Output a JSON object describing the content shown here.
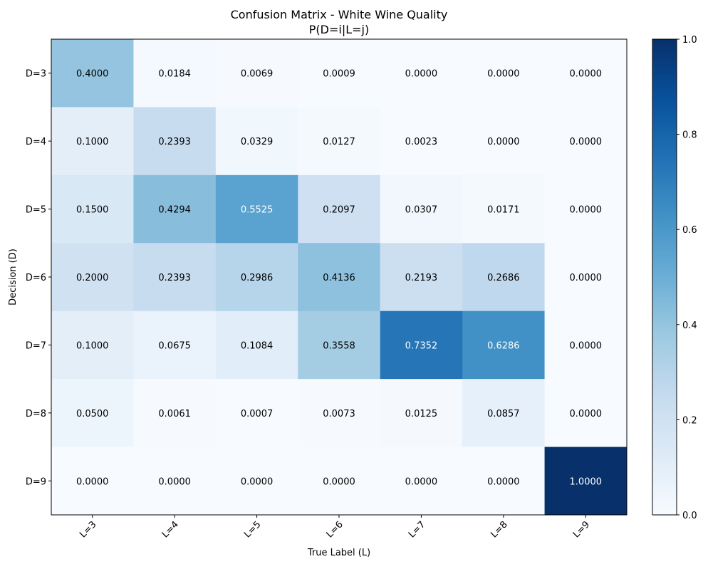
{
  "chart_data": {
    "type": "heatmap",
    "title": "Confusion Matrix - White Wine Quality",
    "subtitle": "P(D=i|L=j)",
    "xlabel": "True Label (L)",
    "ylabel": "Decision (D)",
    "x_categories": [
      "L=3",
      "L=4",
      "L=5",
      "L=6",
      "L=7",
      "L=8",
      "L=9"
    ],
    "y_categories": [
      "D=3",
      "D=4",
      "D=5",
      "D=6",
      "D=7",
      "D=8",
      "D=9"
    ],
    "values": [
      [
        0.4,
        0.0184,
        0.0069,
        0.0009,
        0.0,
        0.0,
        0.0
      ],
      [
        0.1,
        0.2393,
        0.0329,
        0.0127,
        0.0023,
        0.0,
        0.0
      ],
      [
        0.15,
        0.4294,
        0.5525,
        0.2097,
        0.0307,
        0.0171,
        0.0
      ],
      [
        0.2,
        0.2393,
        0.2986,
        0.4136,
        0.2193,
        0.2686,
        0.0
      ],
      [
        0.1,
        0.0675,
        0.1084,
        0.3558,
        0.7352,
        0.6286,
        0.0
      ],
      [
        0.05,
        0.0061,
        0.0007,
        0.0073,
        0.0125,
        0.0857,
        0.0
      ],
      [
        0.0,
        0.0,
        0.0,
        0.0,
        0.0,
        0.0,
        1.0
      ]
    ],
    "value_format": "0.0000",
    "colormap": "Blues",
    "color_range": [
      0.0,
      1.0
    ],
    "colorbar_ticks": [
      "0.0",
      "0.2",
      "0.4",
      "0.6",
      "0.8",
      "1.0"
    ],
    "grid": false,
    "legend": "colorbar-right"
  }
}
